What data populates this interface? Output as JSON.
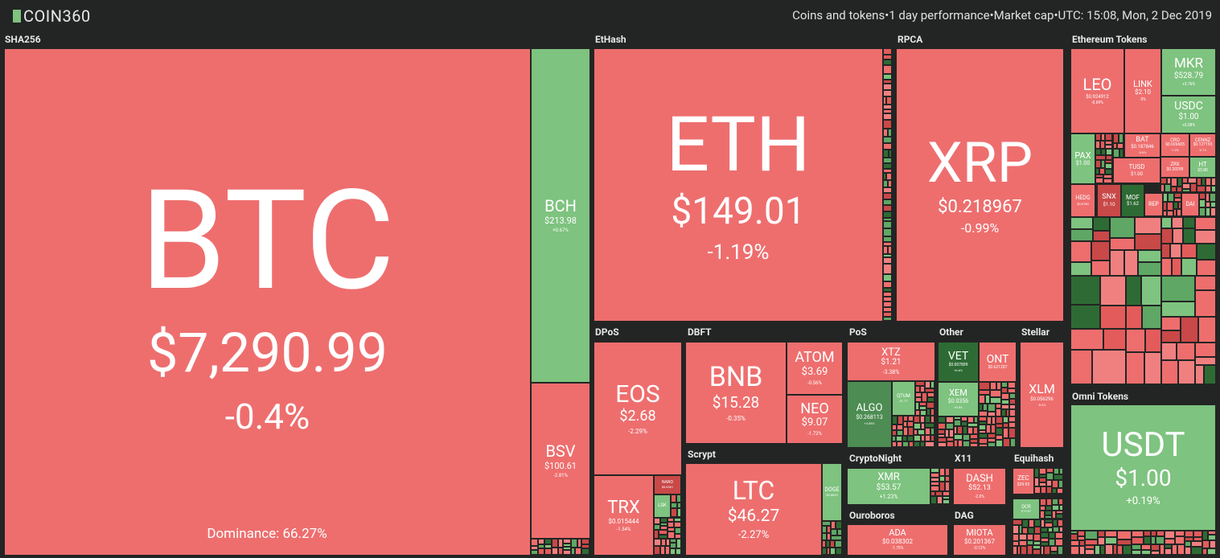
{
  "header": {
    "logo": "COIN360",
    "filters": [
      "Coins and tokens",
      "1 day performance",
      "Market cap",
      "UTC: 15:08, Mon, 2 Dec 2019"
    ]
  },
  "dominance": "Dominance: 66.27%",
  "groups": [
    {
      "name": "SHA256",
      "tiles": [
        {
          "symbol": "BTC",
          "price": "$7,290.99",
          "change": "-0.4%"
        },
        {
          "symbol": "BCH",
          "price": "$213.98",
          "change": "+0.67%"
        },
        {
          "symbol": "BSV",
          "price": "$100.61",
          "change": "-2.81%"
        }
      ]
    },
    {
      "name": "EtHash",
      "tiles": [
        {
          "symbol": "ETH",
          "price": "$149.01",
          "change": "-1.19%"
        }
      ]
    },
    {
      "name": "RPCA",
      "tiles": [
        {
          "symbol": "XRP",
          "price": "$0.218967",
          "change": "-0.99%"
        }
      ]
    },
    {
      "name": "Ethereum Tokens",
      "tiles": [
        {
          "symbol": "LEO",
          "price": "$0.924912",
          "change": "-0.69%"
        },
        {
          "symbol": "LINK",
          "price": "$2.10",
          "change": "-5%"
        },
        {
          "symbol": "MKR",
          "price": "$528.79",
          "change": "+3.76%"
        },
        {
          "symbol": "USDC",
          "price": "$1.00",
          "change": "+0.08%"
        },
        {
          "symbol": "BAT",
          "price": "$0.187846",
          "change": "-3.6%"
        },
        {
          "symbol": "CRO",
          "price": "$0.026605",
          "change": "-1.2%"
        },
        {
          "symbol": "CENNZ",
          "price": "$0.127193",
          "change": "-2.1%"
        },
        {
          "symbol": "PAX",
          "price": "$1.00"
        },
        {
          "symbol": "TUSD",
          "price": "$1.00"
        },
        {
          "symbol": "ZRX",
          "price": "$0.20299"
        },
        {
          "symbol": "HT",
          "price": "$3.80"
        },
        {
          "symbol": "HEDG",
          "price": "$0.6780"
        },
        {
          "symbol": "SNX",
          "price": "$1.10"
        },
        {
          "symbol": "MOF",
          "price": "$1.62"
        },
        {
          "symbol": "REP"
        },
        {
          "symbol": "DAI"
        }
      ]
    },
    {
      "name": "Omni Tokens",
      "tiles": [
        {
          "symbol": "USDT",
          "price": "$1.00",
          "change": "+0.19%"
        }
      ]
    },
    {
      "name": "DPoS",
      "tiles": [
        {
          "symbol": "EOS",
          "price": "$2.68",
          "change": "-2.29%"
        },
        {
          "symbol": "TRX",
          "price": "$0.015444",
          "change": "-1.54%"
        },
        {
          "symbol": "NANO",
          "price": "$0.8361"
        },
        {
          "symbol": "LSK"
        }
      ]
    },
    {
      "name": "DBFT",
      "tiles": [
        {
          "symbol": "BNB",
          "price": "$15.28",
          "change": "-0.35%"
        },
        {
          "symbol": "ATOM",
          "price": "$3.69",
          "change": "-0.56%"
        },
        {
          "symbol": "NEO",
          "price": "$9.07",
          "change": "-1.72%"
        }
      ]
    },
    {
      "name": "Scrypt",
      "tiles": [
        {
          "symbol": "LTC",
          "price": "$46.27",
          "change": "-2.27%"
        },
        {
          "symbol": "DOGE",
          "price": "$0.0022"
        }
      ]
    },
    {
      "name": "PoS",
      "tiles": [
        {
          "symbol": "XTZ",
          "price": "$1.21",
          "change": "-3.38%"
        },
        {
          "symbol": "ALGO",
          "price": "$0.268113",
          "change": "+4.08%"
        },
        {
          "symbol": "QTUM",
          "price": "$1.77"
        }
      ]
    },
    {
      "name": "Other",
      "tiles": [
        {
          "symbol": "VET",
          "price": "$0.007809",
          "change": "+6.6%"
        },
        {
          "symbol": "ONT",
          "price": "$0.621207"
        },
        {
          "symbol": "XEM",
          "price": "$0.0356",
          "change": "+0.8%"
        }
      ]
    },
    {
      "name": "Stellar",
      "tiles": [
        {
          "symbol": "XLM",
          "price": "$0.056296",
          "change": "-0.6%"
        }
      ]
    },
    {
      "name": "CryptoNight",
      "tiles": [
        {
          "symbol": "XMR",
          "price": "$53.57",
          "change": "+1.23%"
        }
      ]
    },
    {
      "name": "X11",
      "tiles": [
        {
          "symbol": "DASH",
          "price": "$52.13",
          "change": "-2.0%"
        }
      ]
    },
    {
      "name": "Equihash",
      "tiles": [
        {
          "symbol": "ZEC",
          "price": "$29.93"
        },
        {
          "symbol": "DCR",
          "price": "$19.07"
        }
      ]
    },
    {
      "name": "Ouroboros",
      "tiles": [
        {
          "symbol": "ADA",
          "price": "$0.038302",
          "change": "-1.75%"
        }
      ]
    },
    {
      "name": "DAG",
      "tiles": [
        {
          "symbol": "MIOTA",
          "price": "$0.201367",
          "change": "-0.12%"
        }
      ]
    }
  ]
}
